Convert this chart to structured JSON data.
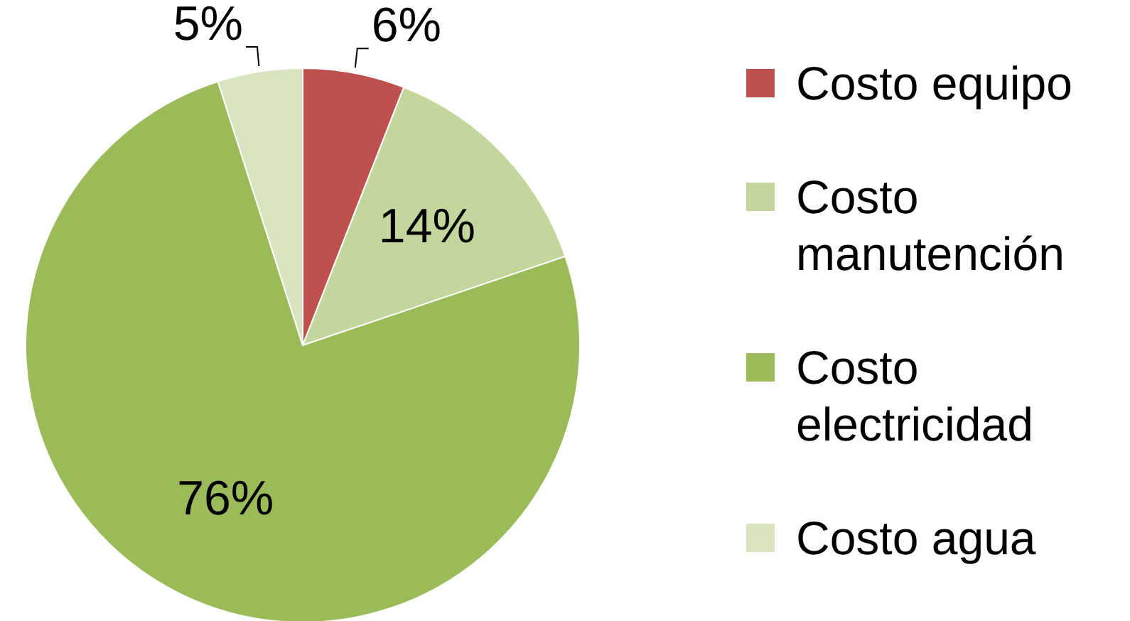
{
  "chart_data": {
    "type": "pie",
    "categories": [
      "Costo equipo",
      "Costo manutención",
      "Costo electricidad",
      "Costo agua"
    ],
    "values": [
      6,
      14,
      76,
      5
    ],
    "colors": [
      "#c0504d",
      "#c3d69b",
      "#9bbb59",
      "#d7e4bd"
    ],
    "value_labels": [
      "6%",
      "14%",
      "76%",
      "5%"
    ],
    "legend": "right"
  }
}
